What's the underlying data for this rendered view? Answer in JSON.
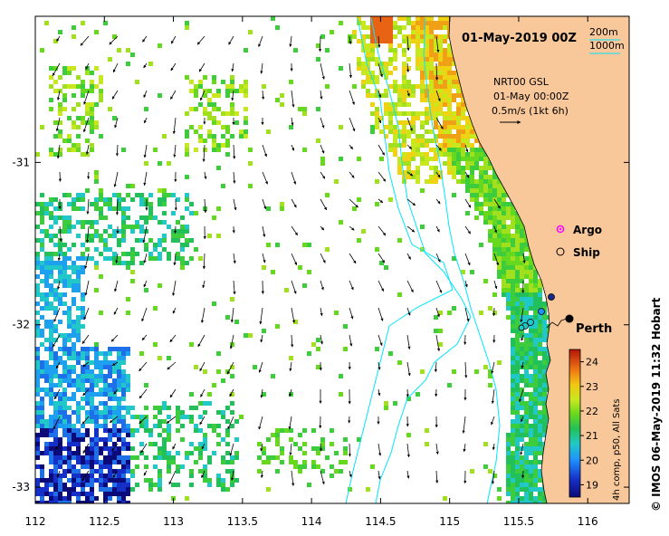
{
  "map": {
    "title": "01-May-2019 00Z",
    "depth_legend": [
      "200m",
      "1000m"
    ],
    "info": {
      "line1": "NRT00 GSL",
      "line2": "01-May 00:00Z",
      "line3": "0.5m/s (1kt 6h)"
    },
    "symbols": {
      "argo": {
        "label": "Argo",
        "color": "#ff00ff"
      },
      "ship": {
        "label": "Ship",
        "color": "#000000"
      }
    },
    "city": {
      "label": "Perth",
      "lon": 115.86,
      "lat": -31.95
    },
    "x_ticks": [
      "112",
      "112.5",
      "113",
      "113.5",
      "114",
      "114.5",
      "115",
      "115.5",
      "116"
    ],
    "y_ticks": [
      "-31",
      "-32",
      "-33"
    ],
    "lon_range": [
      112,
      116.3
    ],
    "lat_range": [
      -30.1,
      -33.1
    ],
    "colorbar": {
      "ticks": [
        "24",
        "23",
        "22",
        "21",
        "20",
        "19"
      ],
      "label": "4h comp, p50, All Sats",
      "range": [
        18.5,
        24.5
      ]
    },
    "credit": "© IMOS 06-May-2019 11:32 Hobart",
    "colors": {
      "land": "#f8c79a",
      "shelf_contour": "#00e5ff"
    }
  }
}
